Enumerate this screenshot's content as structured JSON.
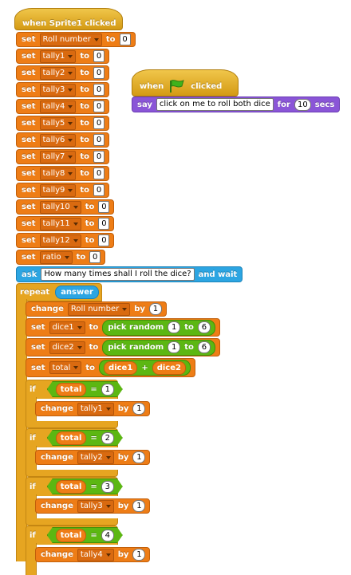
{
  "when": "when",
  "hat_sprite": "when Sprite1 clicked",
  "clicked": "clicked",
  "set": "set",
  "to": "to",
  "by": "by",
  "change": "change",
  "ask": "ask",
  "and_wait": "and wait",
  "repeat": "repeat",
  "if": "if",
  "say": "say",
  "for": "for",
  "secs": "secs",
  "pick_random": "pick random",
  "plus": "+",
  "equals": "=",
  "zero": "0",
  "one": "1",
  "six": "6",
  "vars": {
    "roll": "Roll number",
    "tally1": "tally1",
    "tally2": "tally2",
    "tally3": "tally3",
    "tally4": "tally4",
    "tally5": "tally5",
    "tally6": "tally6",
    "tally7": "tally7",
    "tally8": "tally8",
    "tally9": "tally9",
    "tally10": "tally10",
    "tally11": "tally11",
    "tally12": "tally12",
    "ratio": "ratio",
    "dice1": "dice1",
    "dice2": "dice2",
    "total": "total"
  },
  "ask_text": "How many times shall I roll the dice?",
  "answer": "answer",
  "say_text": "click on me to roll both dice",
  "say_secs": "10",
  "if_values": [
    "1",
    "2",
    "3",
    "4"
  ],
  "colors": {
    "events": "#e6a521",
    "variables": "#ee7d16",
    "sensing": "#2ca5e2",
    "looks": "#8a55d7",
    "operators": "#5cb712",
    "flag": "#3fb31b"
  },
  "icons": [
    "green-flag-icon",
    "dropdown-arrow-icon"
  ]
}
